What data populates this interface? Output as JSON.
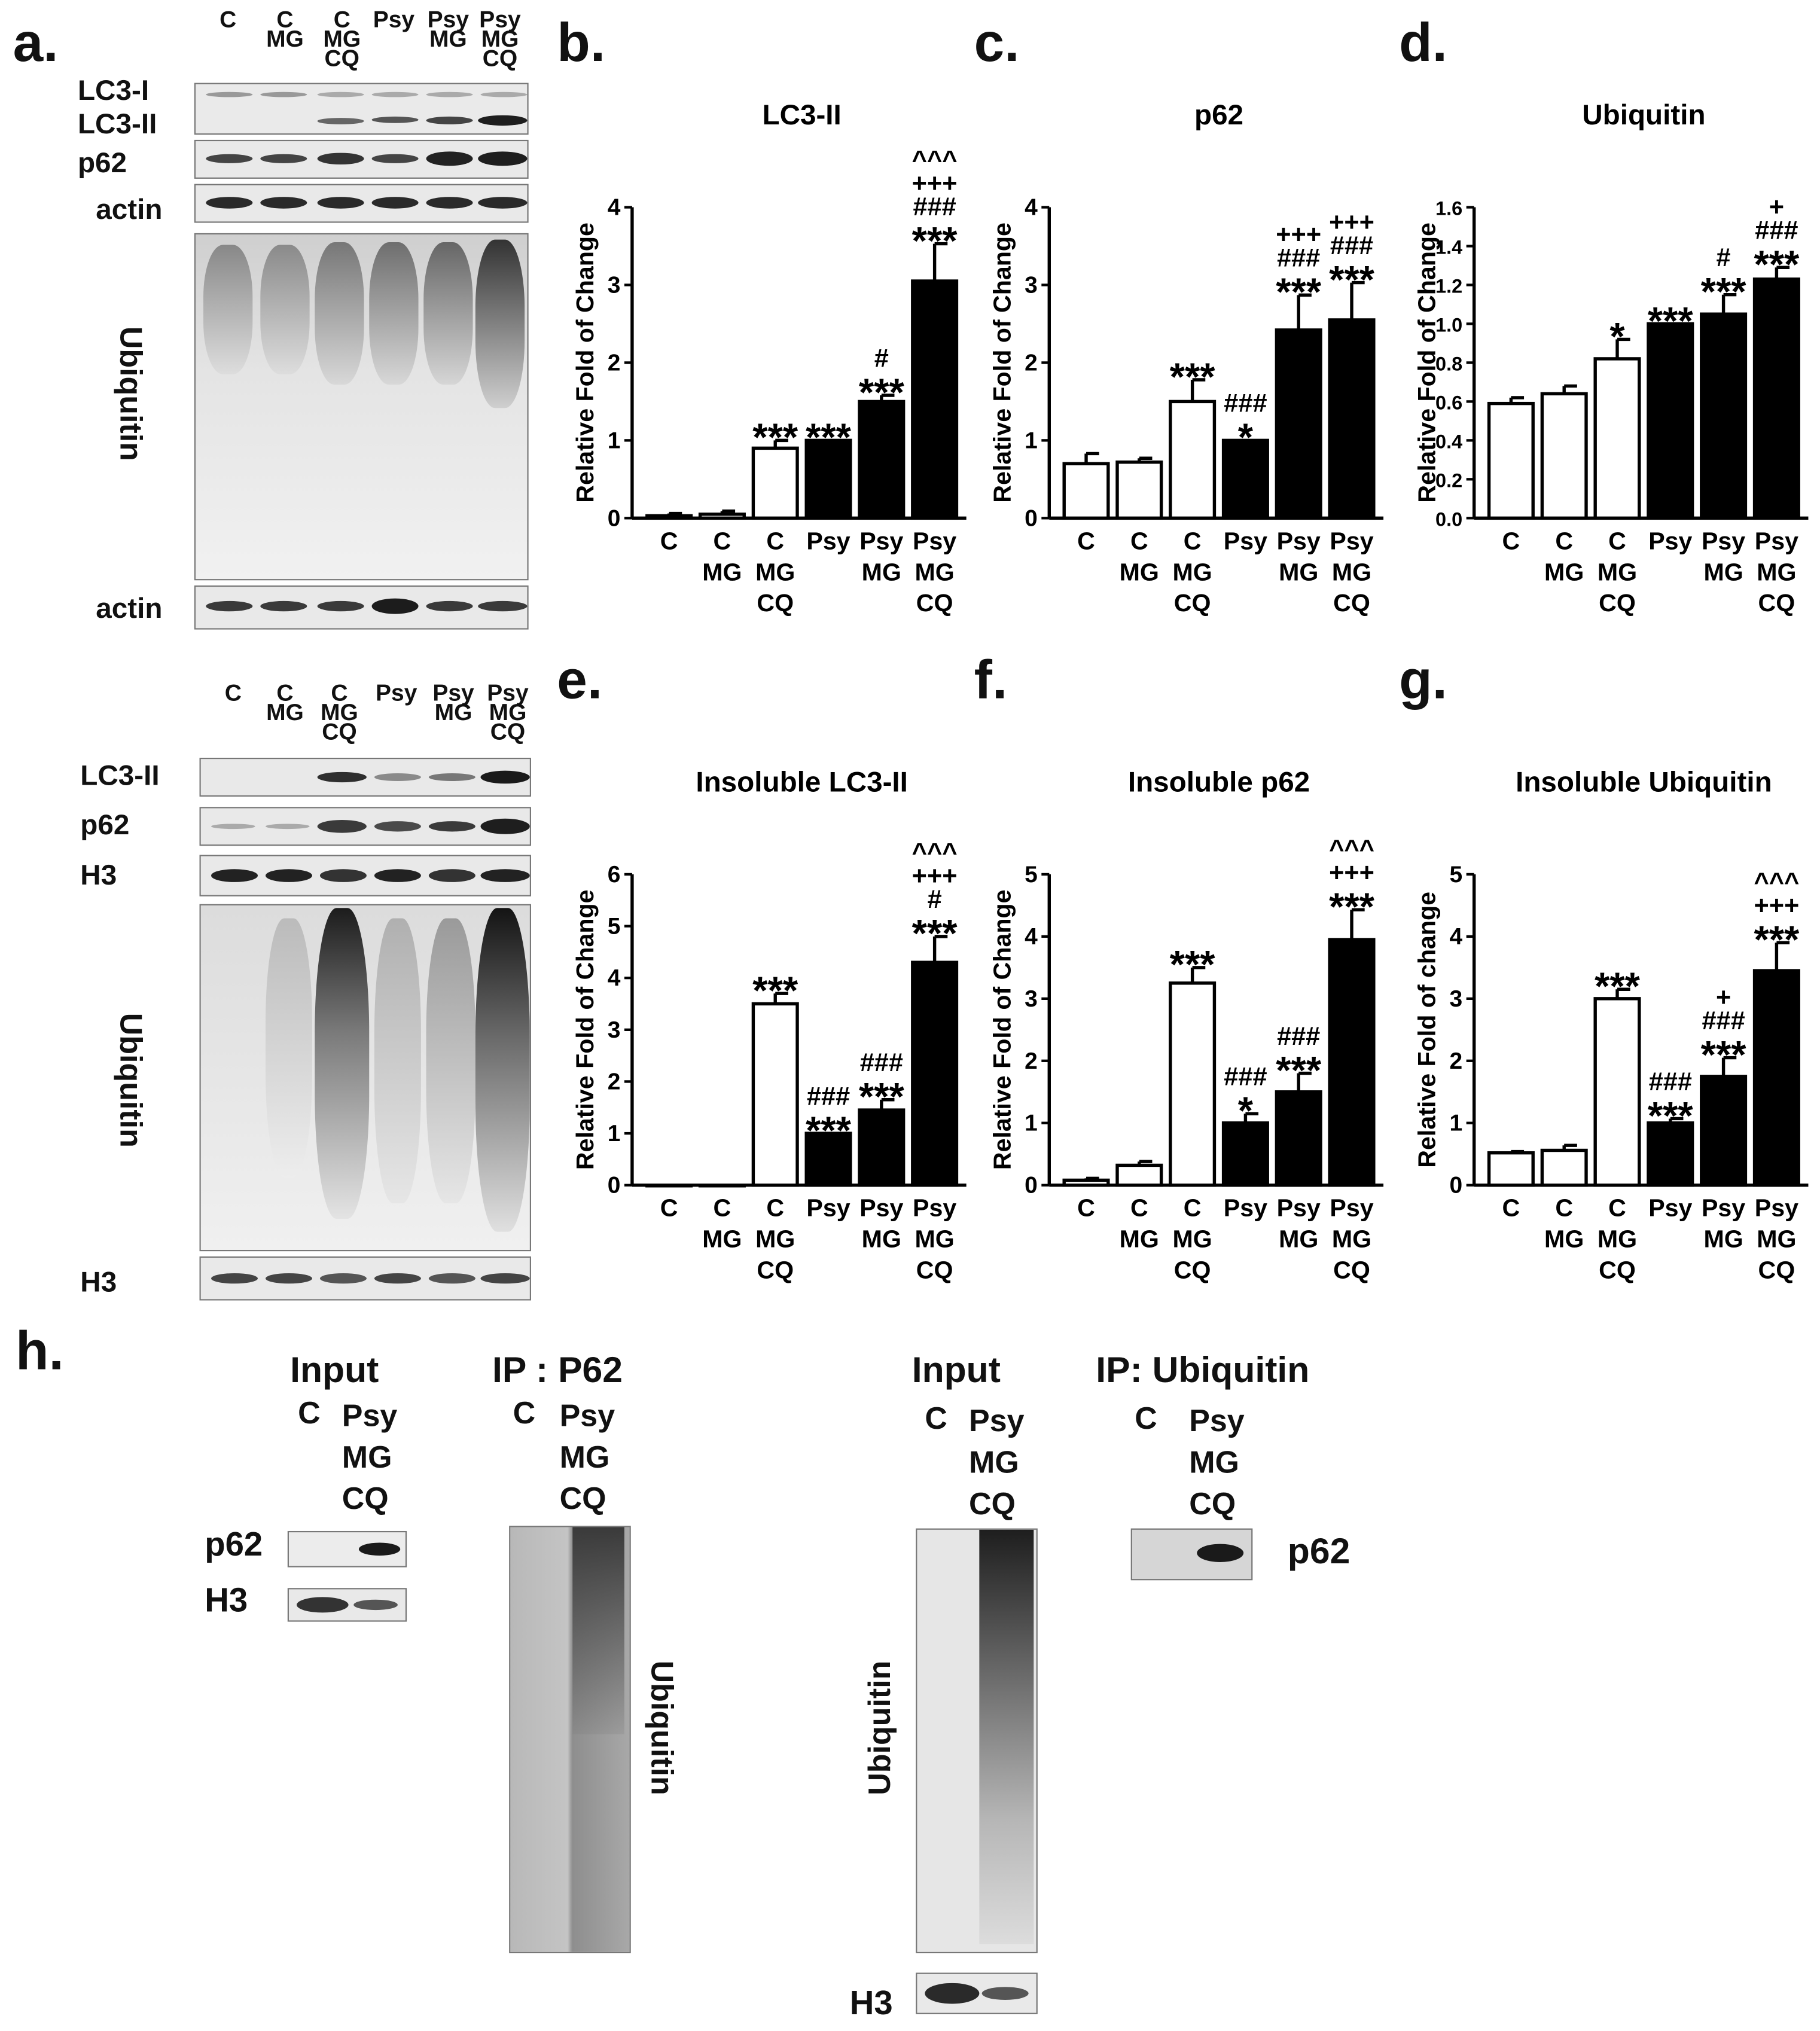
{
  "panel_labels": {
    "a": "a.",
    "b": "b.",
    "c": "c.",
    "d": "d.",
    "e": "e.",
    "f": "f.",
    "g": "g.",
    "h": "h."
  },
  "blot_top": {
    "lanes": [
      [
        "C"
      ],
      [
        "C",
        "MG"
      ],
      [
        "C",
        "MG",
        "CQ"
      ],
      [
        "Psy"
      ],
      [
        "Psy",
        "MG"
      ],
      [
        "Psy",
        "MG",
        "CQ"
      ]
    ],
    "labels": {
      "lc3i": "LC3-I",
      "lc3ii": "LC3-II",
      "p62": "p62",
      "actin1": "actin",
      "ubiquitin": "Ubiquitin",
      "actin2": "actin"
    }
  },
  "blot_bottom": {
    "lanes": [
      [
        "C"
      ],
      [
        "C",
        "MG"
      ],
      [
        "C",
        "MG",
        "CQ"
      ],
      [
        "Psy"
      ],
      [
        "Psy",
        "MG"
      ],
      [
        "Psy",
        "MG",
        "CQ"
      ]
    ],
    "labels": {
      "lc3ii": "LC3-II",
      "p62": "p62",
      "h3a": "H3",
      "ubiquitin": "Ubiquitin",
      "h3b": "H3"
    }
  },
  "chart_data": [
    {
      "id": "b",
      "type": "bar",
      "title": "LC3-II",
      "ylabel": "Relative Fold of Change",
      "ylim": [
        0,
        4
      ],
      "yticks": [
        "0",
        "1",
        "2",
        "3",
        "4"
      ],
      "categories": [
        [
          "C"
        ],
        [
          "C",
          "MG"
        ],
        [
          "C",
          "MG",
          "CQ"
        ],
        [
          "Psy"
        ],
        [
          "Psy",
          "MG"
        ],
        [
          "Psy",
          "MG",
          "CQ"
        ]
      ],
      "values": [
        0.03,
        0.05,
        0.9,
        1.0,
        1.5,
        3.05
      ],
      "errors": [
        0.03,
        0.04,
        0.1,
        0.0,
        0.08,
        0.48
      ],
      "fills": [
        "white",
        "white",
        "white",
        "black",
        "black",
        "black"
      ],
      "annotations": [
        [],
        [],
        [
          "***"
        ],
        [
          "***"
        ],
        [
          "***",
          "#"
        ],
        [
          "***",
          "###",
          "+++",
          "^^^"
        ]
      ]
    },
    {
      "id": "c",
      "type": "bar",
      "title": "p62",
      "ylabel": "Relative Fold of Change",
      "ylim": [
        0,
        4
      ],
      "yticks": [
        "0",
        "1",
        "2",
        "3",
        "4"
      ],
      "categories": [
        [
          "C"
        ],
        [
          "C",
          "MG"
        ],
        [
          "C",
          "MG",
          "CQ"
        ],
        [
          "Psy"
        ],
        [
          "Psy",
          "MG"
        ],
        [
          "Psy",
          "MG",
          "CQ"
        ]
      ],
      "values": [
        0.7,
        0.72,
        1.5,
        1.0,
        2.42,
        2.55
      ],
      "errors": [
        0.13,
        0.05,
        0.28,
        0.0,
        0.45,
        0.48
      ],
      "fills": [
        "white",
        "white",
        "white",
        "black",
        "black",
        "black"
      ],
      "annotations": [
        [],
        [],
        [
          "***"
        ],
        [
          "*",
          "###"
        ],
        [
          "***",
          "###",
          "+++"
        ],
        [
          "***",
          "###",
          "+++"
        ]
      ]
    },
    {
      "id": "d",
      "type": "bar",
      "title": "Ubiquitin",
      "ylabel": "Relative Fold of Change",
      "ylim": [
        0,
        1.6
      ],
      "yticks": [
        "0.0",
        "0.2",
        "0.4",
        "0.6",
        "0.8",
        "1.0",
        "1.2",
        "1.4",
        "1.6"
      ],
      "categories": [
        [
          "C"
        ],
        [
          "C",
          "MG"
        ],
        [
          "C",
          "MG",
          "CQ"
        ],
        [
          "Psy"
        ],
        [
          "Psy",
          "MG"
        ],
        [
          "Psy",
          "MG",
          "CQ"
        ]
      ],
      "values": [
        0.59,
        0.64,
        0.82,
        1.0,
        1.05,
        1.23
      ],
      "errors": [
        0.03,
        0.04,
        0.1,
        0.0,
        0.1,
        0.06
      ],
      "fills": [
        "white",
        "white",
        "white",
        "black",
        "black",
        "black"
      ],
      "annotations": [
        [],
        [],
        [
          "*"
        ],
        [
          "***"
        ],
        [
          "***",
          "#"
        ],
        [
          "***",
          "###",
          "+"
        ]
      ]
    },
    {
      "id": "e",
      "type": "bar",
      "title": "Insoluble LC3-II",
      "ylabel": "Relative Fold of Change",
      "ylim": [
        0,
        6
      ],
      "yticks": [
        "0",
        "1",
        "2",
        "3",
        "4",
        "5",
        "6"
      ],
      "categories": [
        [
          "C"
        ],
        [
          "C",
          "MG"
        ],
        [
          "C",
          "MG",
          "CQ"
        ],
        [
          "Psy"
        ],
        [
          "Psy",
          "MG"
        ],
        [
          "Psy",
          "MG",
          "CQ"
        ]
      ],
      "values": [
        0.0,
        0.0,
        3.5,
        1.0,
        1.45,
        4.3
      ],
      "errors": [
        0.0,
        0.0,
        0.2,
        0.0,
        0.2,
        0.5
      ],
      "fills": [
        "white",
        "white",
        "white",
        "black",
        "black",
        "black"
      ],
      "annotations": [
        [],
        [],
        [
          "***"
        ],
        [
          "***",
          "###"
        ],
        [
          "***",
          "###"
        ],
        [
          "***",
          "#",
          "+++",
          "^^^"
        ]
      ]
    },
    {
      "id": "f",
      "type": "bar",
      "title": "Insoluble p62",
      "ylabel": "Relative Fold of Change",
      "ylim": [
        0,
        5
      ],
      "yticks": [
        "0",
        "1",
        "2",
        "3",
        "4",
        "5"
      ],
      "categories": [
        [
          "C"
        ],
        [
          "C",
          "MG"
        ],
        [
          "C",
          "MG",
          "CQ"
        ],
        [
          "Psy"
        ],
        [
          "Psy",
          "MG"
        ],
        [
          "Psy",
          "MG",
          "CQ"
        ]
      ],
      "values": [
        0.08,
        0.32,
        3.25,
        1.0,
        1.5,
        3.95
      ],
      "errors": [
        0.03,
        0.06,
        0.25,
        0.15,
        0.3,
        0.48
      ],
      "fills": [
        "white",
        "white",
        "white",
        "black",
        "black",
        "black"
      ],
      "annotations": [
        [],
        [],
        [
          "***"
        ],
        [
          "*",
          "###"
        ],
        [
          "***",
          "###"
        ],
        [
          "***",
          "+++",
          "^^^"
        ]
      ]
    },
    {
      "id": "g",
      "type": "bar",
      "title": "Insoluble Ubiquitin",
      "ylabel": "Relative Fold of change",
      "ylim": [
        0,
        5
      ],
      "yticks": [
        "0",
        "1",
        "2",
        "3",
        "4",
        "5"
      ],
      "categories": [
        [
          "C"
        ],
        [
          "C",
          "MG"
        ],
        [
          "C",
          "MG",
          "CQ"
        ],
        [
          "Psy"
        ],
        [
          "Psy",
          "MG"
        ],
        [
          "Psy",
          "MG",
          "CQ"
        ]
      ],
      "values": [
        0.52,
        0.56,
        3.0,
        1.0,
        1.75,
        3.45
      ],
      "errors": [
        0.02,
        0.08,
        0.15,
        0.07,
        0.3,
        0.45
      ],
      "fills": [
        "white",
        "white",
        "white",
        "black",
        "black",
        "black"
      ],
      "annotations": [
        [],
        [],
        [
          "***"
        ],
        [
          "***",
          "###"
        ],
        [
          "***",
          "###",
          "+"
        ],
        [
          "***",
          "+++",
          "^^^"
        ]
      ]
    }
  ],
  "panel_h": {
    "input1_title": "Input",
    "ip1_title": "IP : P62",
    "input2_title": "Input",
    "ip2_title": "IP: Ubiquitin",
    "lane_c": "C",
    "lane_psy": [
      "Psy",
      "MG",
      "CQ"
    ],
    "labels": {
      "p62_left": "p62",
      "h3_left": "H3",
      "ubiq_ip1": "Ubiquitin",
      "ubiq_input2": "Ubiquitin",
      "h3_bottom": "H3",
      "p62_right": "p62"
    }
  }
}
